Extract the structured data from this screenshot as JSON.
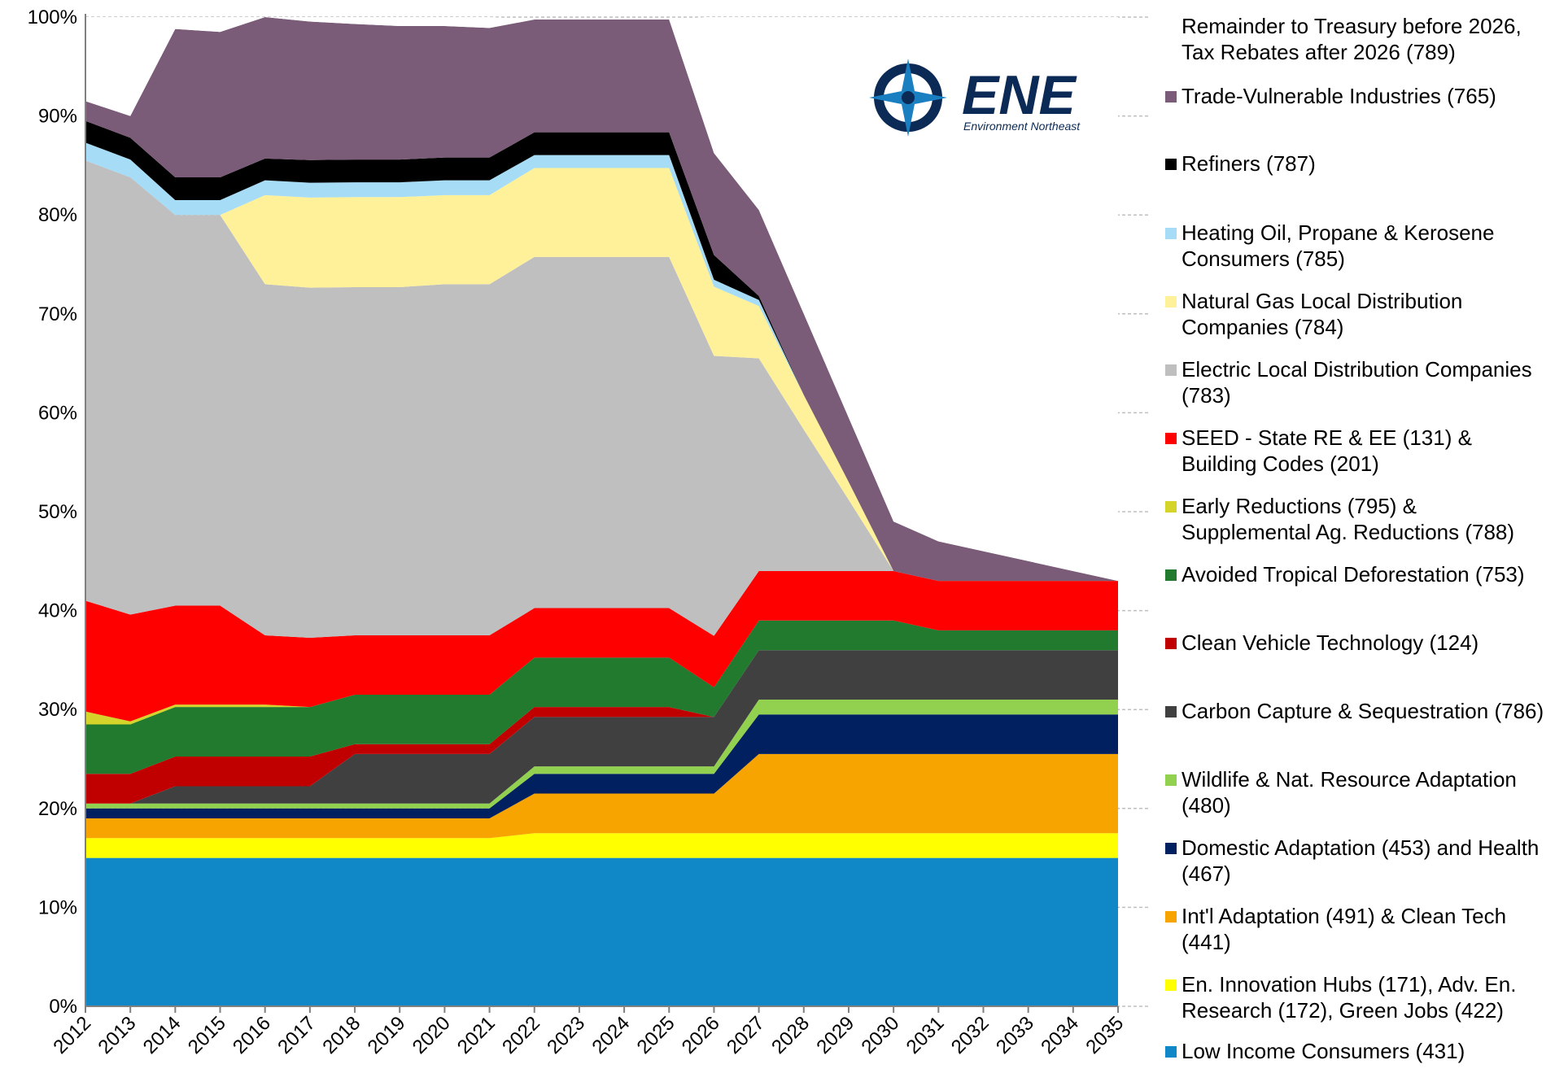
{
  "chart_data": {
    "type": "stacked_area",
    "categories": [
      "2012",
      "2013",
      "2014",
      "2015",
      "2016",
      "2017",
      "2018",
      "2019",
      "2020",
      "2021",
      "2022",
      "2023",
      "2024",
      "2025",
      "2026",
      "2027",
      "2028",
      "2029",
      "2030",
      "2031",
      "2032",
      "2033",
      "2034",
      "2035"
    ],
    "ylim": [
      0,
      100
    ],
    "yticks": [
      {
        "value": 0,
        "label": "0%"
      },
      {
        "value": 10,
        "label": "10%"
      },
      {
        "value": 20,
        "label": "20%"
      },
      {
        "value": 30,
        "label": "30%"
      },
      {
        "value": 40,
        "label": "40%"
      },
      {
        "value": 50,
        "label": "50%"
      },
      {
        "value": 60,
        "label": "60%"
      },
      {
        "value": 70,
        "label": "70%"
      },
      {
        "value": 80,
        "label": "80%"
      },
      {
        "value": 90,
        "label": "90%"
      },
      {
        "value": 100,
        "label": "100%"
      }
    ],
    "grid": true,
    "logo": {
      "title": "ENE",
      "subtitle": "Environment Northeast"
    },
    "series": [
      {
        "name": "Low Income Consumers (431)",
        "color": "#1088c8",
        "values": [
          15,
          15,
          15,
          15,
          15,
          15,
          15,
          15,
          15,
          15,
          15,
          15,
          15,
          15,
          15,
          15,
          15,
          15,
          15,
          15,
          15,
          15,
          15,
          15
        ]
      },
      {
        "name": "En. Innovation Hubs (171), Adv. En. Research (172), Green Jobs (422)",
        "color": "#ffff00",
        "values": [
          2,
          2,
          2,
          2,
          2,
          2,
          2,
          2,
          2,
          2,
          2.5,
          2.5,
          2.5,
          2.5,
          2.5,
          2.5,
          2.5,
          2.5,
          2.5,
          2.5,
          2.5,
          2.5,
          2.5,
          2.5
        ]
      },
      {
        "name": "Int'l Adaptation (491) & Clean Tech (441)",
        "color": "#f7a400",
        "values": [
          2,
          2,
          2,
          2,
          2,
          2,
          2,
          2,
          2,
          2,
          4,
          4,
          4,
          4,
          4,
          8,
          8,
          8,
          8,
          8,
          8,
          8,
          8,
          8
        ]
      },
      {
        "name": "Domestic Adaptation (453) and Health (467)",
        "color": "#002060",
        "values": [
          1,
          1,
          1,
          1,
          1,
          1,
          1,
          1,
          1,
          1,
          2,
          2,
          2,
          2,
          2,
          4,
          4,
          4,
          4,
          4,
          4,
          4,
          4,
          4
        ]
      },
      {
        "name": "Wildlife & Nat. Resource Adaptation (480)",
        "color": "#92d050",
        "values": [
          0.5,
          0.5,
          0.5,
          0.5,
          0.5,
          0.5,
          0.5,
          0.5,
          0.5,
          0.5,
          0.75,
          0.75,
          0.75,
          0.75,
          0.75,
          1.5,
          1.5,
          1.5,
          1.5,
          1.5,
          1.5,
          1.5,
          1.5,
          1.5
        ]
      },
      {
        "name": "Carbon Capture & Sequestration (786)",
        "color": "#404040",
        "values": [
          0,
          0,
          1.75,
          1.75,
          1.75,
          1.75,
          5,
          5,
          5,
          5,
          5,
          5,
          5,
          5,
          5,
          5,
          5,
          5,
          5,
          5,
          5,
          5,
          5,
          5
        ]
      },
      {
        "name": "Clean Vehicle Technology (124)",
        "color": "#c00000",
        "values": [
          3,
          3,
          3,
          3,
          3,
          3,
          1,
          1,
          1,
          1,
          1,
          1,
          1,
          1,
          0,
          0,
          0,
          0,
          0,
          0,
          0,
          0,
          0,
          0
        ]
      },
      {
        "name": "Avoided Tropical Deforestation (753)",
        "color": "#217a2e",
        "values": [
          5,
          5,
          5,
          5,
          5,
          5,
          5,
          5,
          5,
          5,
          5,
          5,
          5,
          5,
          3,
          3,
          3,
          3,
          3,
          2,
          2,
          2,
          2,
          2
        ]
      },
      {
        "name": "Early Reductions (795) & Supplemental Ag. Reductions (788)",
        "color": "#d4d42a",
        "values": [
          1.3,
          0.3,
          0.25,
          0.25,
          0.25,
          0,
          0,
          0,
          0,
          0,
          0,
          0,
          0,
          0,
          0,
          0,
          0,
          0,
          0,
          0,
          0,
          0,
          0,
          0
        ]
      },
      {
        "name": "SEED - State RE & EE (131) & Building Codes (201)",
        "color": "#ff0000",
        "values": [
          11.2,
          10.8,
          10,
          10,
          7,
          7,
          6,
          6,
          6,
          6,
          5,
          5,
          5,
          5,
          5.2,
          5,
          5,
          5,
          5,
          5,
          5,
          5,
          5,
          5
        ]
      },
      {
        "name": "Electric Local Distribution Companies (783)",
        "color": "#bfbfbf",
        "values": [
          44.5,
          44.2,
          39.5,
          39.5,
          35.5,
          35.4,
          35.2,
          35.2,
          35.5,
          35.5,
          35.5,
          35.5,
          35.5,
          35.5,
          28.3,
          21.5,
          14.3,
          7.2,
          0,
          0,
          0,
          0,
          0,
          0
        ]
      },
      {
        "name": "Natural Gas Local Distribution Companies (784)",
        "color": "#fff19a",
        "values": [
          0,
          0,
          0,
          0,
          9,
          9.1,
          9.1,
          9.1,
          9,
          9,
          9,
          9,
          9,
          9,
          7,
          5.3,
          3.5,
          1.8,
          0,
          0,
          0,
          0,
          0,
          0
        ]
      },
      {
        "name": "Heating Oil, Propane & Kerosene Consumers (785)",
        "color": "#a6dcf5",
        "values": [
          1.8,
          1.8,
          1.5,
          1.5,
          1.5,
          1.5,
          1.5,
          1.5,
          1.5,
          1.5,
          1.3,
          1.3,
          1.3,
          1.3,
          0.7,
          0.6,
          0,
          0,
          0,
          0,
          0,
          0,
          0,
          0
        ]
      },
      {
        "name": "Refiners (787)",
        "color": "#000000",
        "values": [
          2.2,
          2.2,
          2.3,
          2.3,
          2.2,
          2.3,
          2.3,
          2.3,
          2.3,
          2.3,
          2.3,
          2.3,
          2.3,
          2.3,
          2.5,
          0.4,
          0,
          0,
          0,
          0,
          0,
          0,
          0,
          0
        ]
      },
      {
        "name": "Trade-Vulnerable Industries (765)",
        "color": "#7b5c78",
        "values": [
          2,
          2.2,
          15,
          14.7,
          14.3,
          14,
          13.7,
          13.5,
          13.3,
          13.1,
          11.4,
          11.4,
          11.4,
          11.4,
          10.3,
          8.7,
          8.2,
          6.5,
          5,
          4,
          3,
          2,
          1,
          0
        ]
      },
      {
        "name": "Remainder to Treasury before 2026, Tax Rebates after 2026 (789)",
        "color": "#ffffff",
        "values": [
          8.5,
          10,
          1.2,
          1.5,
          0,
          0.45,
          0.7,
          0.9,
          0.9,
          1.1,
          0,
          0,
          0,
          0,
          13.8,
          19.5,
          30,
          40.5,
          51,
          53,
          54,
          55,
          56,
          57
        ]
      }
    ]
  }
}
